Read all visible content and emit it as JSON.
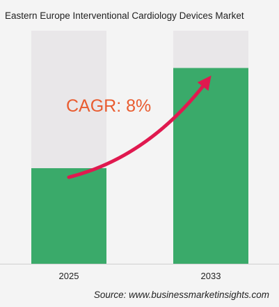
{
  "title": "Eastern Europe Interventional Cardiology Devices Market",
  "source": "Source: www.businessmarketinsights.com",
  "annotation": "CAGR: 8%",
  "colors": {
    "bar": "#3aaa6a",
    "bar_track": "#e9e7e9",
    "arrow": "#e0194f",
    "cagr_text": "#e95c30",
    "axis": "#cfcfcf",
    "background": "#f4f4f4"
  },
  "chart_data": {
    "type": "bar",
    "categories": [
      "2025",
      "2033"
    ],
    "values": [
      0.41,
      0.84
    ],
    "value_unit": "fraction of full bar height",
    "annotations": [
      "CAGR: 8%"
    ],
    "grid": false,
    "legend": false
  }
}
